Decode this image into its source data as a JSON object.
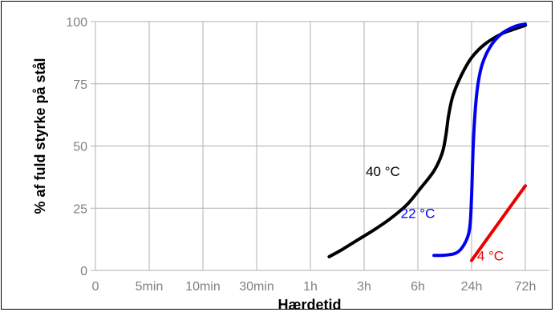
{
  "chart_data": {
    "type": "line",
    "xlabel": "Hærdetid",
    "ylabel": "% af fuld styrke på stål",
    "x_categories": [
      "0",
      "5min",
      "10min",
      "30min",
      "1h",
      "3h",
      "6h",
      "24h",
      "72h"
    ],
    "ylim": [
      0,
      100
    ],
    "y_ticks": [
      0,
      25,
      50,
      75,
      100
    ],
    "grid": true,
    "legend": "none",
    "series": [
      {
        "name": "40 °C",
        "color": "#000000",
        "points": [
          [
            4.35,
            5.5
          ],
          [
            4.6,
            8.5
          ],
          [
            4.9,
            12.5
          ],
          [
            5.2,
            16.5
          ],
          [
            5.5,
            21
          ],
          [
            5.8,
            26.5
          ],
          [
            6.05,
            33
          ],
          [
            6.3,
            40
          ],
          [
            6.45,
            47
          ],
          [
            6.52,
            54
          ],
          [
            6.57,
            62
          ],
          [
            6.65,
            70
          ],
          [
            6.8,
            78
          ],
          [
            7.0,
            85.5
          ],
          [
            7.25,
            91
          ],
          [
            7.55,
            95
          ],
          [
            7.8,
            97
          ],
          [
            8.0,
            98.5
          ]
        ]
      },
      {
        "name": "22 °C",
        "color": "#0000ee",
        "points": [
          [
            6.3,
            6
          ],
          [
            6.55,
            6.2
          ],
          [
            6.75,
            7.5
          ],
          [
            6.9,
            12
          ],
          [
            6.97,
            18
          ],
          [
            7.0,
            30
          ],
          [
            7.03,
            50
          ],
          [
            7.07,
            65
          ],
          [
            7.12,
            75
          ],
          [
            7.2,
            83
          ],
          [
            7.35,
            90
          ],
          [
            7.55,
            95
          ],
          [
            7.8,
            98
          ],
          [
            8.0,
            99
          ]
        ]
      },
      {
        "name": "4 °C",
        "color": "#ee0000",
        "points": [
          [
            7.0,
            4
          ],
          [
            8.0,
            34
          ]
        ]
      }
    ]
  }
}
